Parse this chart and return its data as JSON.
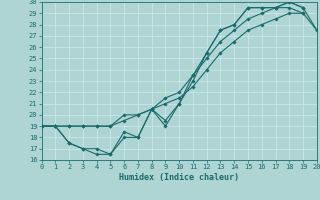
{
  "xlabel": "Humidex (Indice chaleur)",
  "xlim": [
    0,
    20
  ],
  "ylim": [
    16,
    30
  ],
  "yticks": [
    16,
    17,
    18,
    19,
    20,
    21,
    22,
    23,
    24,
    25,
    26,
    27,
    28,
    29,
    30
  ],
  "xticks": [
    0,
    1,
    2,
    3,
    4,
    5,
    6,
    7,
    8,
    9,
    10,
    11,
    12,
    13,
    14,
    15,
    16,
    17,
    18,
    19,
    20
  ],
  "bg_color": "#aed4d4",
  "grid_color": "#c8e8e8",
  "line_color": "#1a6b6b",
  "lines": [
    {
      "x": [
        0,
        1,
        2,
        3,
        4,
        5,
        6,
        7,
        8,
        9,
        10,
        11,
        12,
        13,
        14,
        15,
        16,
        17,
        18,
        19,
        20
      ],
      "y": [
        19.0,
        19.0,
        17.5,
        17.0,
        17.0,
        16.5,
        18.0,
        18.0,
        20.5,
        19.5,
        21.0,
        23.5,
        25.5,
        27.5,
        28.0,
        29.5,
        29.5,
        29.5,
        30.0,
        29.5,
        null
      ]
    },
    {
      "x": [
        0,
        1,
        2,
        3,
        4,
        5,
        6,
        7,
        8,
        9,
        10,
        11,
        12,
        13,
        14,
        15,
        16,
        17,
        18,
        19,
        20
      ],
      "y": [
        19.0,
        19.0,
        17.5,
        17.0,
        16.5,
        16.5,
        18.5,
        18.0,
        20.5,
        19.0,
        21.0,
        23.0,
        25.5,
        27.5,
        28.0,
        29.5,
        29.5,
        29.5,
        29.5,
        29.0,
        null
      ]
    },
    {
      "x": [
        0,
        1,
        2,
        3,
        4,
        5,
        6,
        7,
        8,
        9,
        10,
        11,
        12,
        13,
        14,
        15,
        16,
        17,
        18,
        19,
        20
      ],
      "y": [
        19.0,
        19.0,
        19.0,
        19.0,
        19.0,
        19.0,
        19.5,
        20.0,
        20.5,
        21.0,
        21.5,
        22.5,
        24.0,
        25.5,
        26.5,
        27.5,
        28.0,
        28.5,
        29.0,
        29.0,
        27.5
      ]
    },
    {
      "x": [
        0,
        1,
        2,
        3,
        4,
        5,
        6,
        7,
        8,
        9,
        10,
        11,
        12,
        13,
        14,
        15,
        16,
        17,
        18,
        19,
        20
      ],
      "y": [
        19.0,
        19.0,
        19.0,
        19.0,
        19.0,
        19.0,
        20.0,
        20.0,
        20.5,
        21.5,
        22.0,
        23.5,
        25.0,
        26.5,
        27.5,
        28.5,
        29.0,
        29.5,
        30.0,
        29.5,
        27.5
      ]
    }
  ]
}
